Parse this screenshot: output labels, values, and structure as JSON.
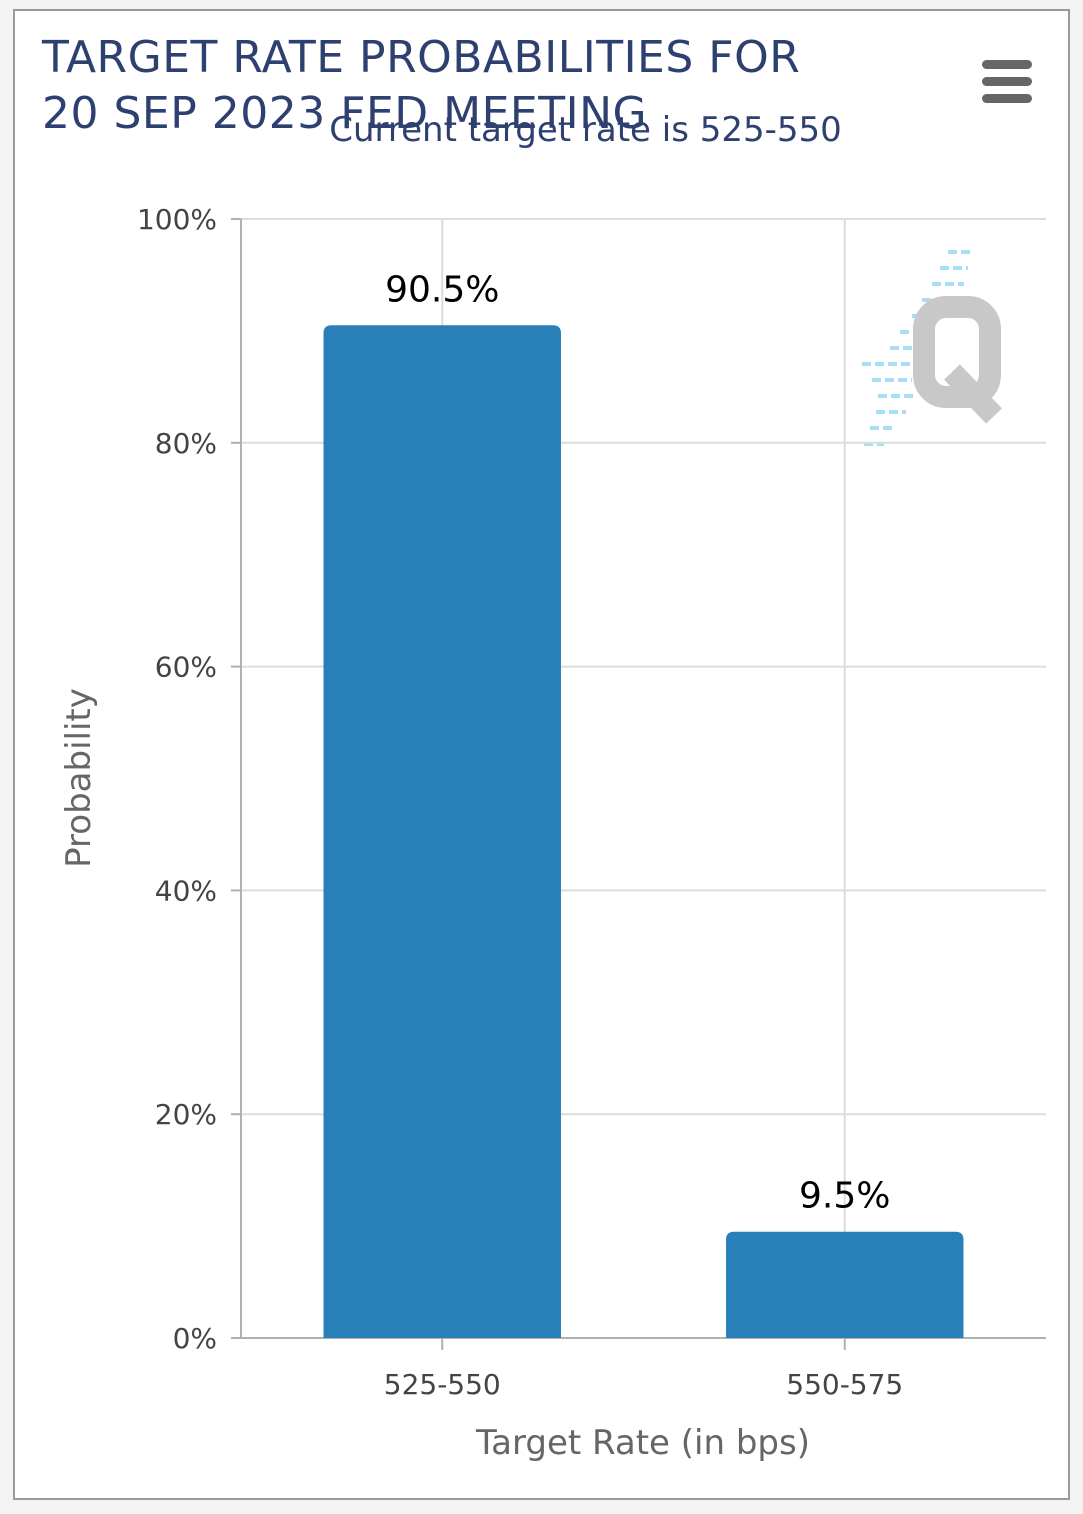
{
  "chart_data": {
    "type": "bar",
    "title": "TARGET RATE PROBABILITIES FOR\n20 SEP 2023 FED MEETING",
    "subtitle": "Current target rate is 525-550",
    "categories": [
      "525-550",
      "550-575"
    ],
    "values": [
      90.5,
      9.5
    ],
    "data_labels": [
      "90.5%",
      "9.5%"
    ],
    "xlabel": "Target Rate (in bps)",
    "ylabel": "Probability",
    "ylim": [
      0,
      100
    ],
    "yticks": [
      0,
      20,
      40,
      60,
      80,
      100
    ],
    "ytick_labels": [
      "0%",
      "20%",
      "40%",
      "60%",
      "80%",
      "100%"
    ],
    "grid": true,
    "bar_color": "#2980b9"
  },
  "icons": {
    "menu": "hamburger-menu-icon",
    "watermark": "quikstrike-q-logo"
  }
}
